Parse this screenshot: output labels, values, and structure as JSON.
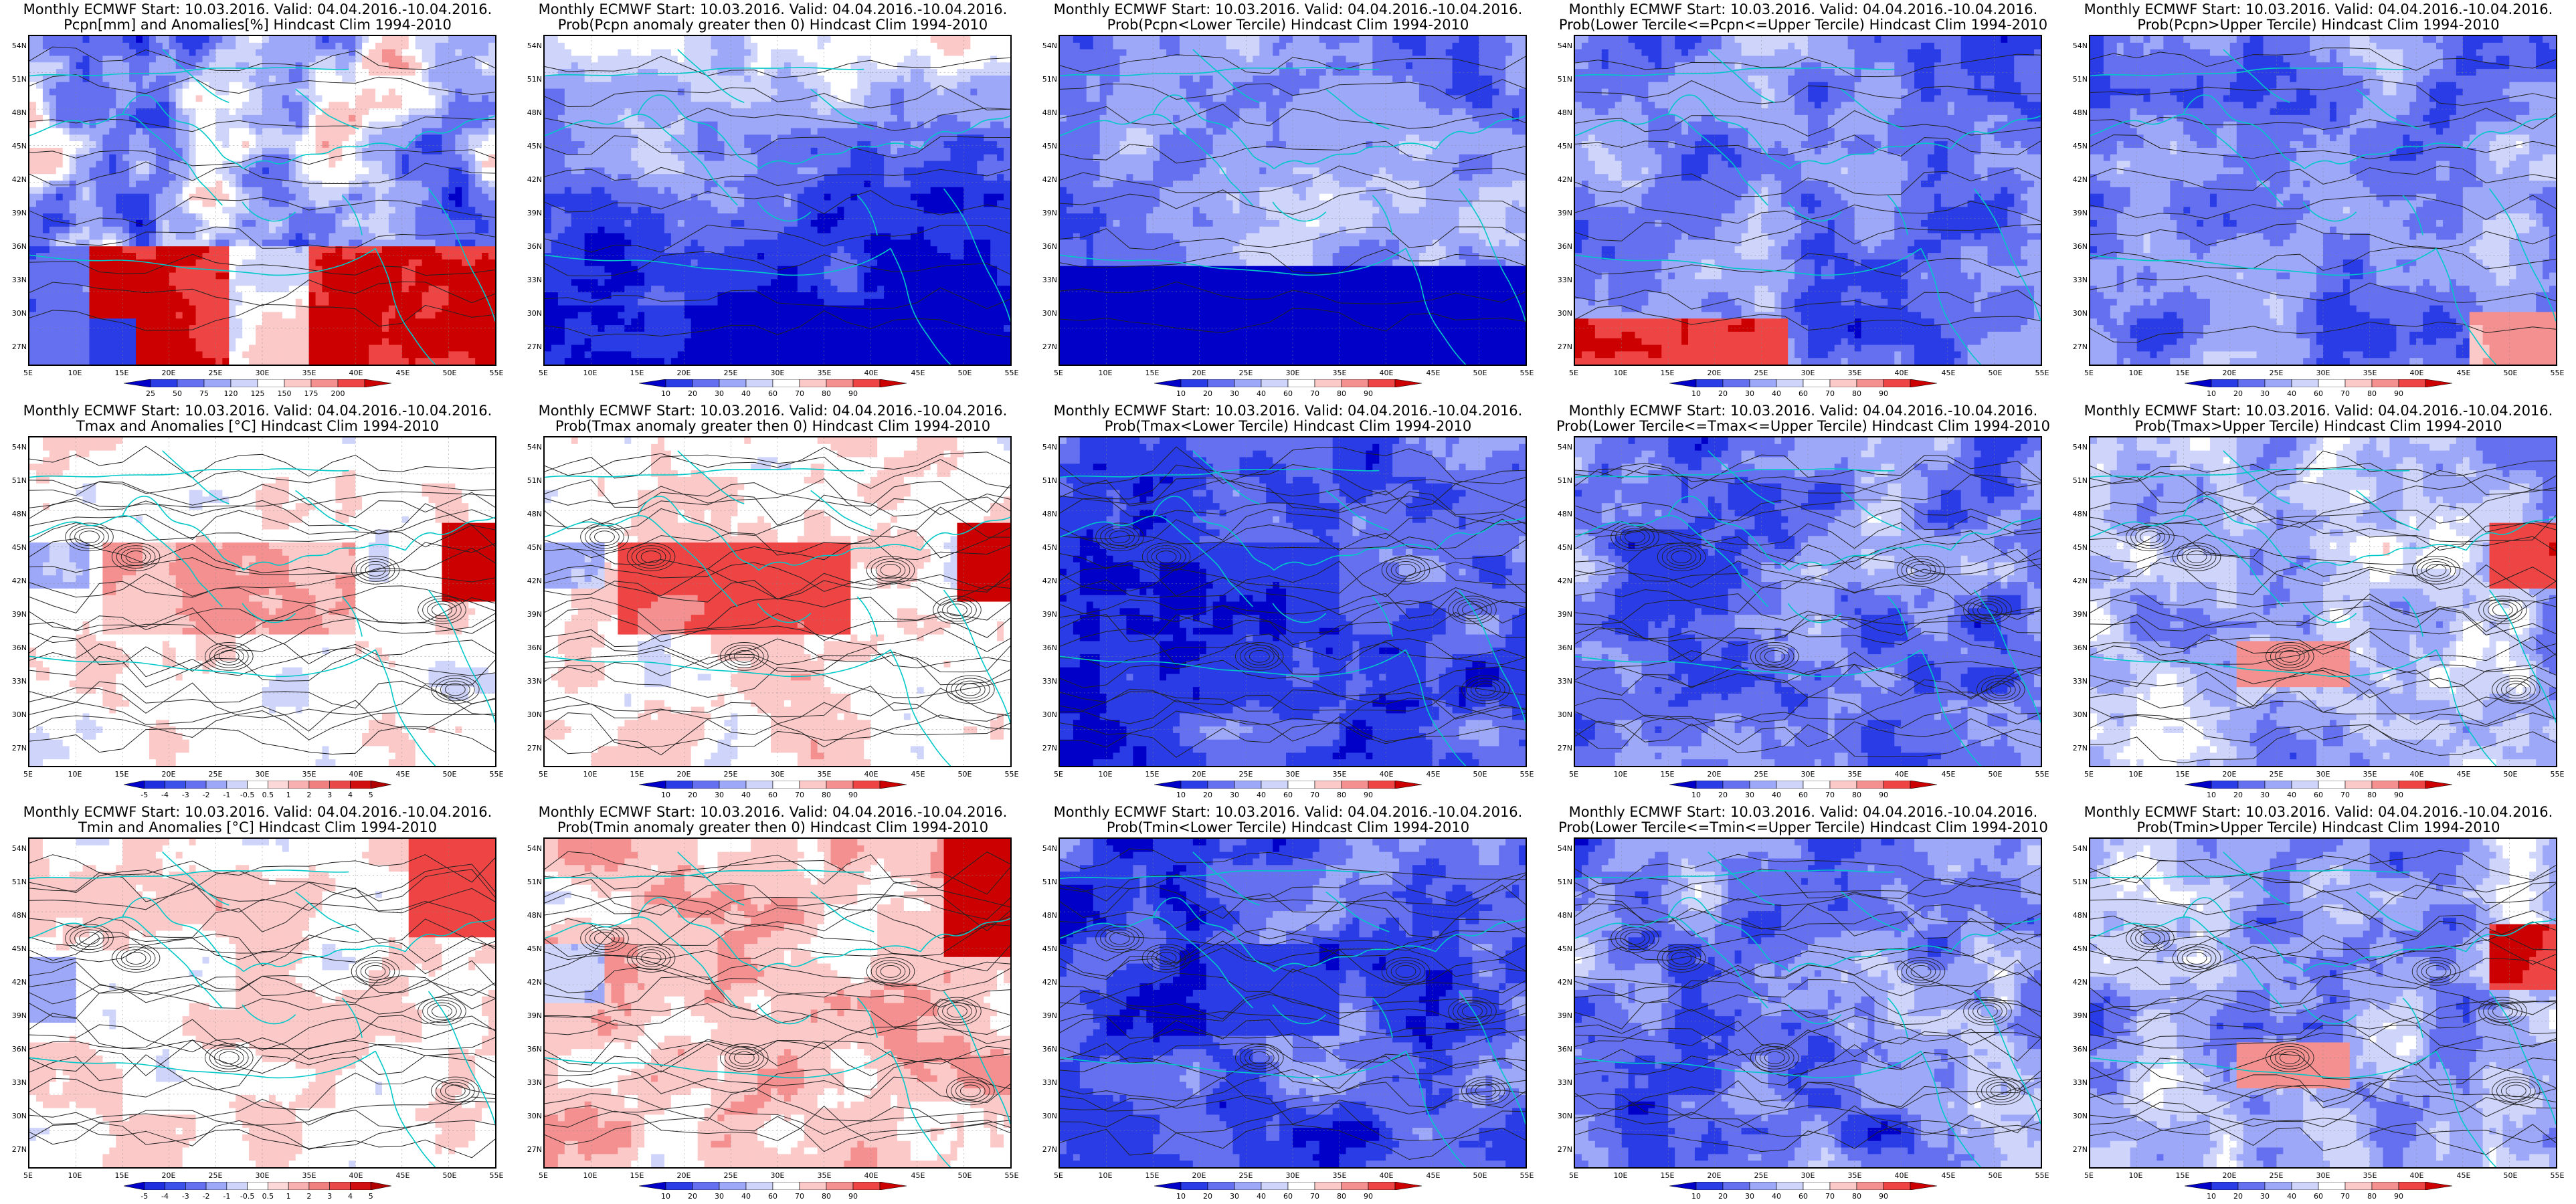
{
  "grid": {
    "lat_labels": [
      "54N",
      "51N",
      "48N",
      "45N",
      "42N",
      "39N",
      "36N",
      "33N",
      "30N",
      "27N"
    ],
    "lon_labels": [
      "5E",
      "10E",
      "15E",
      "20E",
      "25E",
      "30E",
      "35E",
      "40E",
      "45E",
      "50E",
      "55E"
    ]
  },
  "colorbars": {
    "prob": {
      "labels": [
        "10",
        "20",
        "30",
        "40",
        "60",
        "70",
        "80",
        "90"
      ],
      "colors": [
        "#0000c8",
        "#2a3ce6",
        "#6470f0",
        "#9ea8f8",
        "#cfd4fb",
        "#ffffff",
        "#fcc9c9",
        "#f59090",
        "#ee4444",
        "#cc0000"
      ]
    },
    "pcpn": {
      "labels": [
        "25",
        "50",
        "75",
        "120",
        "125",
        "150",
        "175",
        "200"
      ],
      "colors": [
        "#0000c8",
        "#2a3ce6",
        "#6470f0",
        "#9ea8f8",
        "#cfd4fb",
        "#ffffff",
        "#fcc9c9",
        "#f59090",
        "#ee4444",
        "#cc0000"
      ]
    },
    "temp": {
      "labels": [
        "-5",
        "-4",
        "-3",
        "-2",
        "-1",
        "-0.5",
        "0.5",
        "1",
        "2",
        "3",
        "4",
        "5"
      ],
      "colors": [
        "#0000c8",
        "#1f2fe0",
        "#3c50ea",
        "#6470f0",
        "#9ea8f8",
        "#cfd4fb",
        "#ffffff",
        "#fcd8d8",
        "#f8b0b0",
        "#f08080",
        "#e84848",
        "#d01010",
        "#b00000"
      ]
    }
  },
  "panels": [
    {
      "title1": "Monthly ECMWF Start: 10.03.2016. Valid: 04.04.2016.-10.04.2016.",
      "title2": "Pcpn[mm] and Anomalies[%] Hindcast Clim 1994-2010",
      "scheme": "pcpn",
      "colorbar": "pcpn"
    },
    {
      "title1": "Monthly ECMWF Start: 10.03.2016. Valid: 04.04.2016.-10.04.2016.",
      "title2": "Prob(Pcpn anomaly greater then 0) Hindcast Clim 1994-2010",
      "scheme": "pcpnprob",
      "colorbar": "prob"
    },
    {
      "title1": "Monthly ECMWF Start: 10.03.2016. Valid: 04.04.2016.-10.04.2016.",
      "title2": "Prob(Pcpn<Lower Tercile) Hindcast Clim 1994-2010",
      "scheme": "pcpnlow",
      "colorbar": "prob"
    },
    {
      "title1": "Monthly ECMWF Start: 10.03.2016. Valid: 04.04.2016.-10.04.2016.",
      "title2": "Prob(Lower Tercile<=Pcpn<=Upper Tercile) Hindcast Clim 1994-2010",
      "scheme": "pcpnmid",
      "colorbar": "prob"
    },
    {
      "title1": "Monthly ECMWF Start: 10.03.2016. Valid: 04.04.2016.-10.04.2016.",
      "title2": "Prob(Pcpn>Upper Tercile) Hindcast Clim 1994-2010",
      "scheme": "pcpnhigh",
      "colorbar": "prob"
    },
    {
      "title1": "Monthly ECMWF Start: 10.03.2016. Valid: 04.04.2016.-10.04.2016.",
      "title2": "Tmax and Anomalies [°C] Hindcast Clim 1994-2010",
      "scheme": "tanom",
      "colorbar": "temp"
    },
    {
      "title1": "Monthly ECMWF Start: 10.03.2016. Valid: 04.04.2016.-10.04.2016.",
      "title2": "Prob(Tmax anomaly greater then 0) Hindcast Clim 1994-2010",
      "scheme": "tprobwarm",
      "colorbar": "prob"
    },
    {
      "title1": "Monthly ECMWF Start: 10.03.2016. Valid: 04.04.2016.-10.04.2016.",
      "title2": "Prob(Tmax<Lower Tercile) Hindcast Clim 1994-2010",
      "scheme": "tlow",
      "colorbar": "prob"
    },
    {
      "title1": "Monthly ECMWF Start: 10.03.2016. Valid: 04.04.2016.-10.04.2016.",
      "title2": "Prob(Lower Tercile<=Tmax<=Upper Tercile) Hindcast Clim 1994-2010",
      "scheme": "tmid",
      "colorbar": "prob"
    },
    {
      "title1": "Monthly ECMWF Start: 10.03.2016. Valid: 04.04.2016.-10.04.2016.",
      "title2": "Prob(Tmax>Upper Tercile) Hindcast Clim 1994-2010",
      "scheme": "thigh",
      "colorbar": "prob"
    },
    {
      "title1": "Monthly ECMWF Start: 10.03.2016. Valid: 04.04.2016.-10.04.2016.",
      "title2": "Tmin and Anomalies [°C] Hindcast Clim 1994-2010",
      "scheme": "tanom2",
      "colorbar": "temp"
    },
    {
      "title1": "Monthly ECMWF Start: 10.03.2016. Valid: 04.04.2016.-10.04.2016.",
      "title2": "Prob(Tmin anomaly greater then 0) Hindcast Clim 1994-2010",
      "scheme": "tprobwarm2",
      "colorbar": "prob"
    },
    {
      "title1": "Monthly ECMWF Start: 10.03.2016. Valid: 04.04.2016.-10.04.2016.",
      "title2": "Prob(Tmin<Lower Tercile) Hindcast Clim 1994-2010",
      "scheme": "tlow2",
      "colorbar": "prob"
    },
    {
      "title1": "Monthly ECMWF Start: 10.03.2016. Valid: 04.04.2016.-10.04.2016.",
      "title2": "Prob(Lower Tercile<=Tmin<=Upper Tercile) Hindcast Clim 1994-2010",
      "scheme": "tmid2",
      "colorbar": "prob"
    },
    {
      "title1": "Monthly ECMWF Start: 10.03.2016. Valid: 04.04.2016.-10.04.2016.",
      "title2": "Prob(Tmin>Upper Tercile) Hindcast Clim 1994-2010",
      "scheme": "thigh2",
      "colorbar": "prob"
    }
  ]
}
